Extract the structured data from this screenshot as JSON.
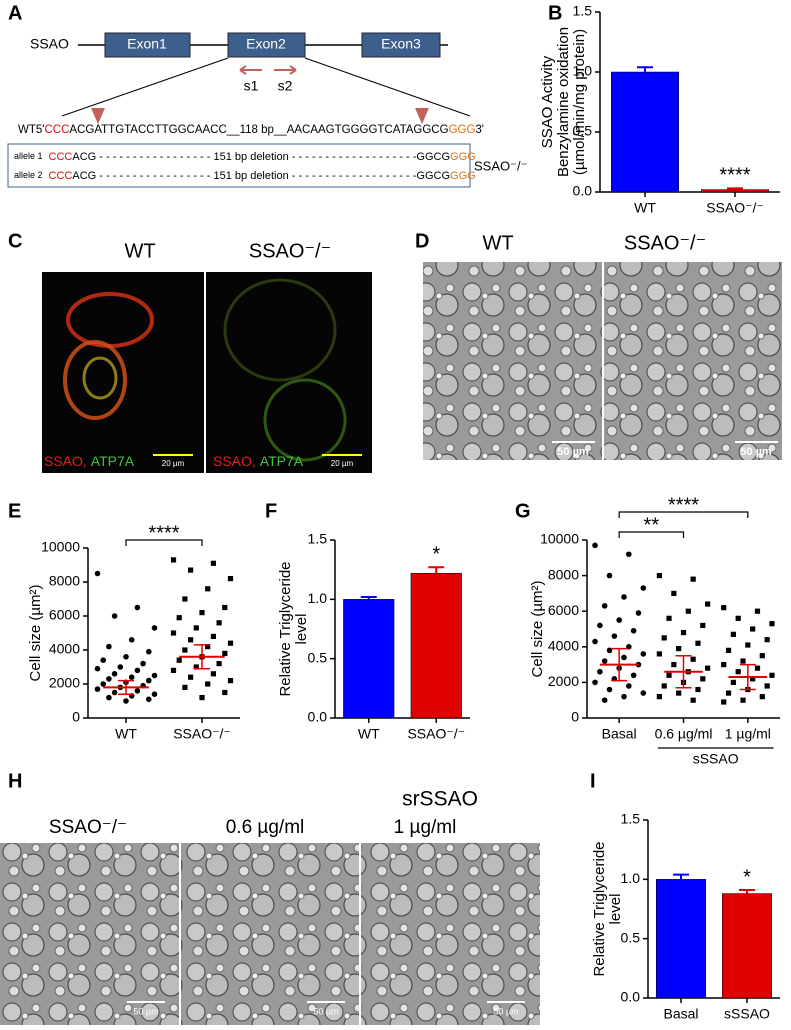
{
  "panel_labels": [
    "A",
    "B",
    "C",
    "D",
    "E",
    "F",
    "G",
    "H",
    "I"
  ],
  "diagram": {
    "gene": "SSAO",
    "exons": [
      "Exon1",
      "Exon2",
      "Exon3"
    ],
    "primers": [
      "s1",
      "s2"
    ],
    "wt_sequence": [
      "WT5'",
      "CCC",
      "ACGATTGTACCTTGGCAACC__118 bp__AACAAGTGGGGTCATAGGCG",
      "GGG",
      "3'"
    ],
    "alleles": [
      [
        "allele 1",
        "CCC",
        "ACG - - - - - - - - - - - - - - - - - 151 bp deletion - - - - - - - - - - - - - - - - - - -GGCG",
        "GGG"
      ],
      [
        "allele 2",
        "CCC",
        "ACG - - - - - - - - - - - - - - - - - 151 bp deletion - - - - - - - - - - - - - - - - - - -GGCG",
        "GGG"
      ]
    ],
    "genotype": "SSAO⁻/⁻"
  },
  "chart_data": [
    {
      "type": "bar",
      "y_label": [
        "SSAO Activity",
        "Benzylamine oxidation",
        "(µmol/min/mg protein)"
      ],
      "categories": [
        "WT",
        "SSAO⁻/⁻"
      ],
      "values": [
        1.0,
        0.02
      ],
      "errors": [
        0.04,
        0.01
      ],
      "colors": [
        "#0000ff",
        "#e00000"
      ],
      "ylim": [
        0,
        1.5
      ],
      "yticks": [
        {
          "value": 0,
          "label": "0.0"
        },
        {
          "value": 0.5,
          "label": "0.5"
        },
        {
          "value": 1,
          "label": "1.0"
        },
        {
          "value": 1.5,
          "label": "1.5"
        }
      ],
      "annotations": [
        {
          "text": "****",
          "category": "SSAO⁻/⁻"
        }
      ]
    },
    {
      "type": "dot",
      "y_label": [
        "Cell size (µm²)"
      ],
      "categories": [
        "WT",
        "SSAO⁻/⁻"
      ],
      "points": [
        [
          8500,
          6500,
          6000,
          5300,
          4600,
          4200,
          3900,
          3600,
          3400,
          3200,
          3000,
          2900,
          2800,
          2600,
          2500,
          2400,
          2300,
          2200,
          2100,
          2000,
          1900,
          1800,
          1700,
          1600,
          1500,
          1400,
          1300,
          1200,
          1100,
          1000
        ],
        [
          9300,
          9100,
          8700,
          8200,
          7600,
          7000,
          6500,
          6200,
          5900,
          5600,
          5300,
          5000,
          4800,
          4600,
          4400,
          4200,
          4000,
          3800,
          3600,
          3400,
          3200,
          3000,
          2800,
          2600,
          2400,
          2200,
          2000,
          1800,
          1500,
          1200
        ]
      ],
      "centers": [
        1800,
        3600
      ],
      "errors": [
        400,
        700
      ],
      "color": "#e00000",
      "ylim": [
        0,
        10000
      ],
      "yticks": [
        0,
        2000,
        4000,
        6000,
        8000,
        10000
      ],
      "annotations": [
        {
          "text": "****",
          "from": "WT",
          "to": "SSAO⁻/⁻"
        }
      ]
    },
    {
      "type": "bar",
      "y_label": [
        "Relative Triglyceride",
        "level"
      ],
      "categories": [
        "WT",
        "SSAO⁻/⁻"
      ],
      "values": [
        1.0,
        1.22
      ],
      "errors": [
        0.02,
        0.05
      ],
      "colors": [
        "#0000ff",
        "#e00000"
      ],
      "ylim": [
        0,
        1.5
      ],
      "yticks": [
        {
          "value": 0,
          "label": "0.0"
        },
        {
          "value": 0.5,
          "label": "0.5"
        },
        {
          "value": 1,
          "label": "1.0"
        },
        {
          "value": 1.5,
          "label": "1.5"
        }
      ],
      "annotations": [
        {
          "text": "*",
          "category": "SSAO⁻/⁻"
        }
      ]
    },
    {
      "type": "dot",
      "y_label": [
        "Cell size (µm²)"
      ],
      "categories": [
        "Basal",
        "0.6 µg/ml",
        "1 µg/ml"
      ],
      "group_label": "sSSAO",
      "points": [
        [
          9700,
          9200,
          8000,
          7300,
          6800,
          6300,
          5900,
          5500,
          5200,
          4900,
          4600,
          4300,
          4000,
          3800,
          3600,
          3400,
          3200,
          3000,
          2800,
          2600,
          2400,
          2200,
          2000,
          1800,
          1600,
          1400,
          1200,
          1000
        ],
        [
          8000,
          7800,
          7000,
          6400,
          6000,
          5600,
          5200,
          4800,
          4500,
          4200,
          3900,
          3600,
          3300,
          3000,
          2800,
          2600,
          2400,
          2200,
          2000,
          1800,
          1600,
          1400,
          1200,
          1000
        ],
        [
          6200,
          6000,
          5600,
          5300,
          5000,
          4700,
          4400,
          4100,
          3800,
          3500,
          3200,
          3000,
          2800,
          2600,
          2400,
          2200,
          2000,
          1800,
          1600,
          1400,
          1200,
          1000,
          900
        ]
      ],
      "centers": [
        3000,
        2600,
        2300
      ],
      "errors": [
        900,
        900,
        700
      ],
      "color": "#e00000",
      "ylim": [
        0,
        10000
      ],
      "yticks": [
        0,
        2000,
        4000,
        6000,
        8000,
        10000
      ],
      "annotations": [
        {
          "text": "**",
          "from": "Basal",
          "to": "0.6 µg/ml"
        },
        {
          "text": "****",
          "from": "Basal",
          "to": "1 µg/ml"
        }
      ]
    },
    {
      "type": "bar",
      "y_label": [
        "Relative Triglyceride",
        "level"
      ],
      "categories": [
        "Basal",
        "sSSAO"
      ],
      "values": [
        1.0,
        0.88
      ],
      "errors": [
        0.04,
        0.03
      ],
      "colors": [
        "#0000ff",
        "#e00000"
      ],
      "ylim": [
        0,
        1.5
      ],
      "yticks": [
        {
          "value": 0,
          "label": "0.0"
        },
        {
          "value": 0.5,
          "label": "0.5"
        },
        {
          "value": 1,
          "label": "1.0"
        },
        {
          "value": 1.5,
          "label": "1.5"
        }
      ],
      "annotations": [
        {
          "text": "*",
          "category": "sSSAO"
        }
      ]
    }
  ],
  "micrographs": {
    "C": {
      "titles": [
        "WT",
        "SSAO⁻/⁻"
      ],
      "stain": [
        "SSAO,",
        "ATP7A"
      ],
      "scale": "20 µm"
    },
    "D": {
      "titles": [
        "WT",
        "SSAO⁻/⁻"
      ],
      "scale": "50 µm"
    },
    "H": {
      "title": "srSSAO",
      "titles": [
        "SSAO⁻/⁻",
        "0.6 µg/ml",
        "1 µg/ml"
      ],
      "scale": "50 µm"
    }
  }
}
